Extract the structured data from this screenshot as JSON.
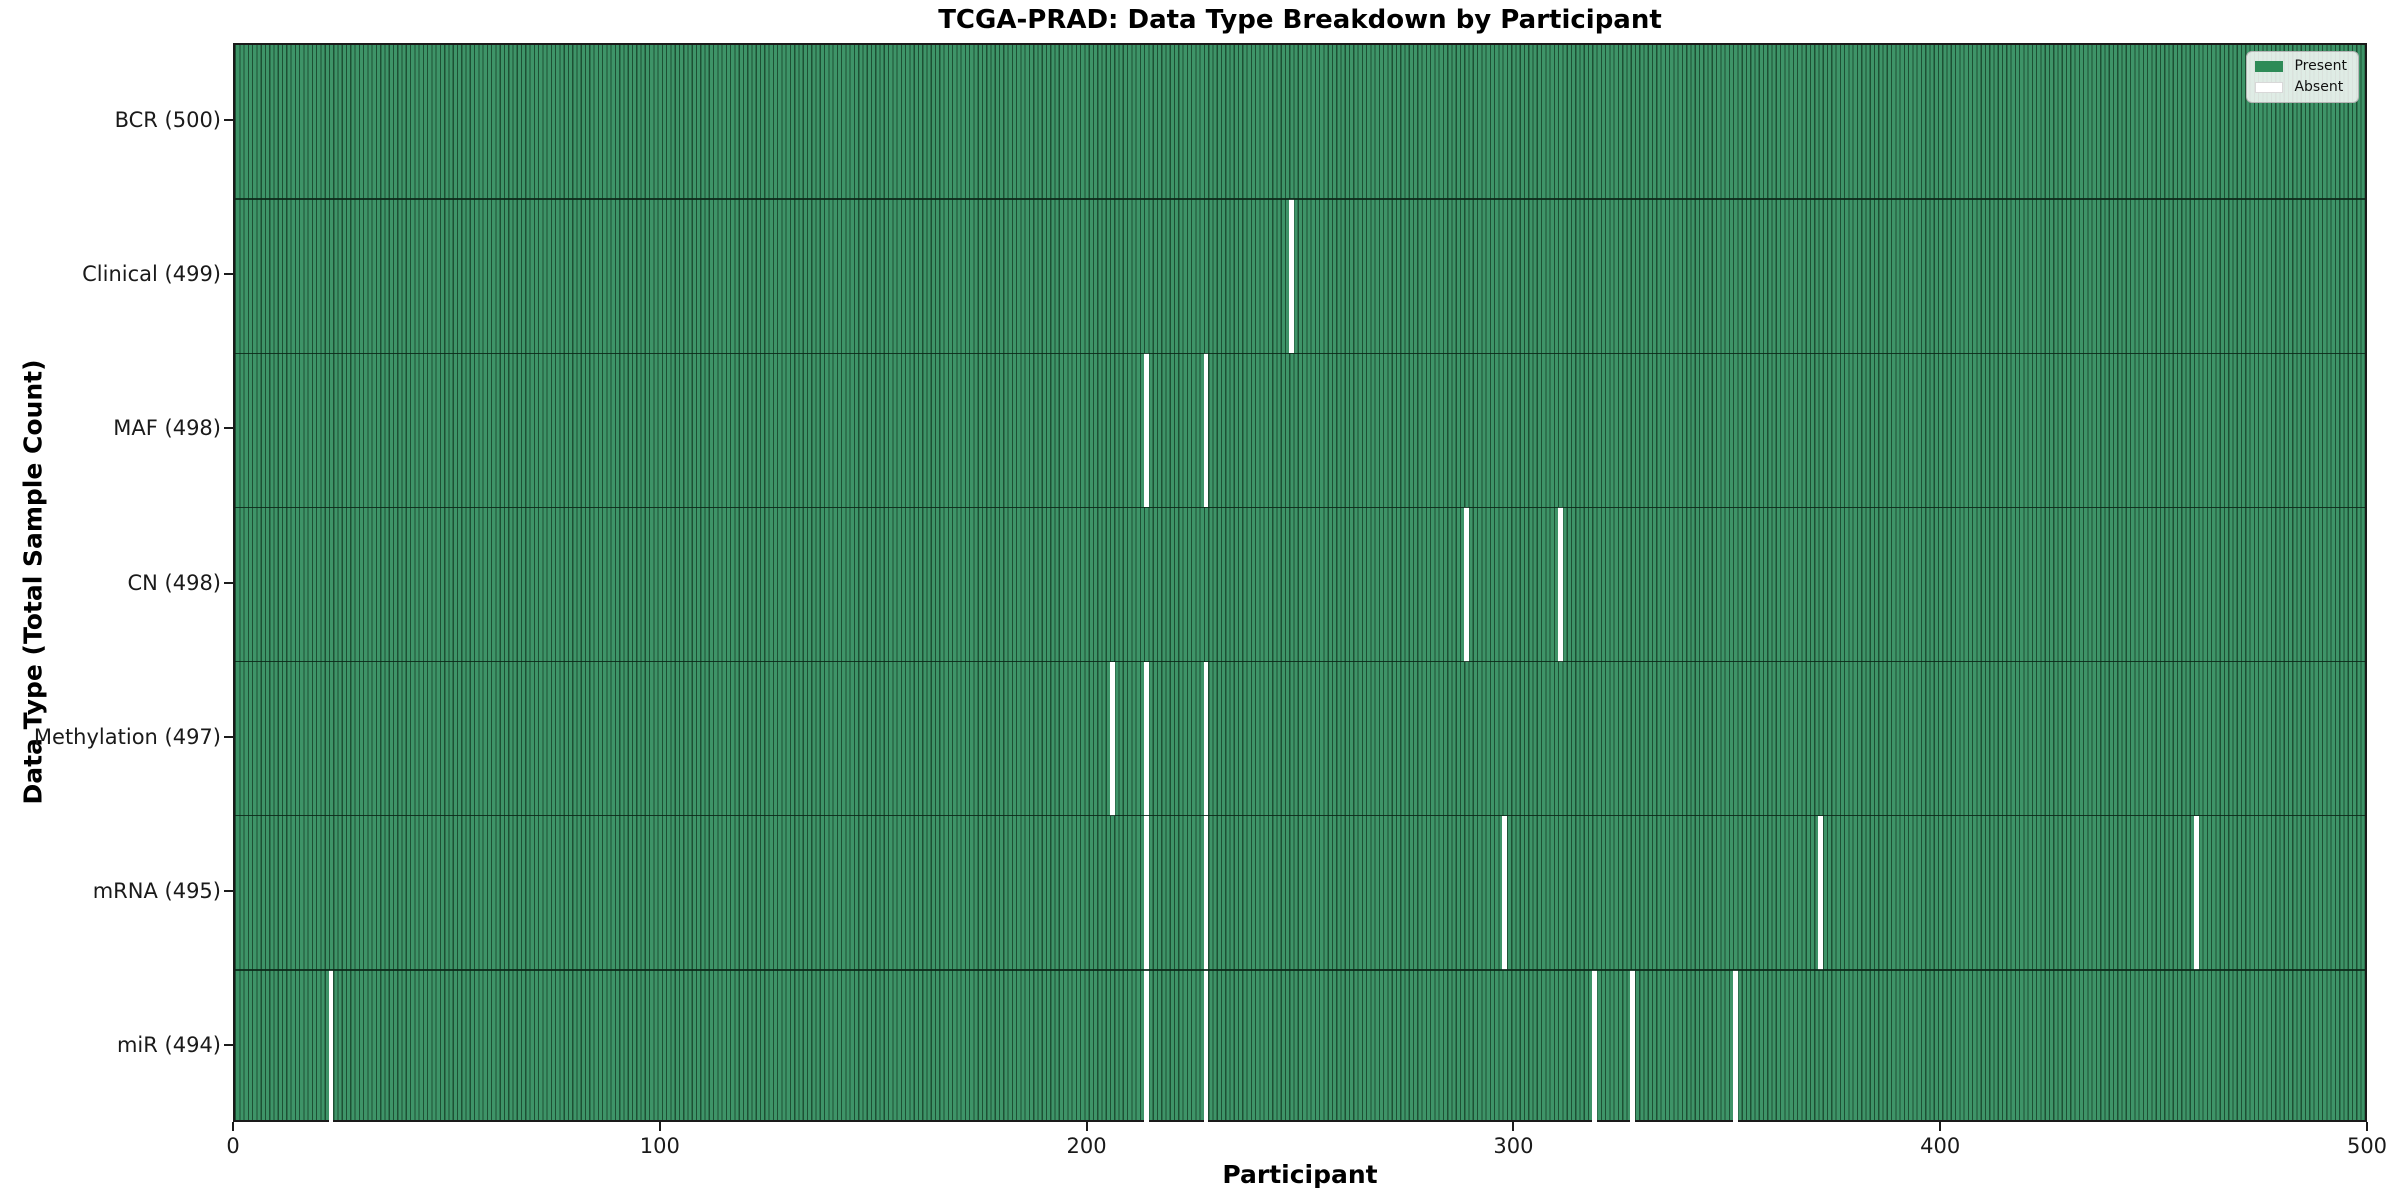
{
  "chart_data": {
    "type": "heatmap",
    "title": "TCGA-PRAD: Data Type Breakdown by Participant",
    "xlabel": "Participant",
    "ylabel": "Data Type (Total Sample Count)",
    "xlim": [
      0,
      500
    ],
    "x_ticks": [
      0,
      100,
      200,
      300,
      400,
      500
    ],
    "n_participants": 500,
    "grid": false,
    "colors": {
      "present_fill": "#3e9468",
      "present_edge": "#1d5034",
      "absent": "#ffffff",
      "legend_present_swatch": "#2e8b57"
    },
    "legend": {
      "position": "upper right",
      "entries": [
        {
          "label": "Present",
          "color": "#2e8b57"
        },
        {
          "label": "Absent",
          "color": "#ffffff"
        }
      ]
    },
    "rows": [
      {
        "label": "BCR (500)",
        "data_type": "BCR",
        "total": 500,
        "absent_participants": []
      },
      {
        "label": "Clinical (499)",
        "data_type": "Clinical",
        "total": 499,
        "absent_participants": [
          247
        ]
      },
      {
        "label": "MAF (498)",
        "data_type": "MAF",
        "total": 498,
        "absent_participants": [
          213,
          227
        ]
      },
      {
        "label": "CN (498)",
        "data_type": "CN",
        "total": 498,
        "absent_participants": [
          288,
          310
        ]
      },
      {
        "label": "Methylation (497)",
        "data_type": "Methylation",
        "total": 497,
        "absent_participants": [
          205,
          213,
          227
        ]
      },
      {
        "label": "mRNA (495)",
        "data_type": "mRNA",
        "total": 495,
        "absent_participants": [
          213,
          227,
          297,
          371,
          459
        ]
      },
      {
        "label": "miR (494)",
        "data_type": "miR",
        "total": 494,
        "absent_participants": [
          22,
          213,
          227,
          318,
          327,
          351
        ]
      }
    ]
  }
}
